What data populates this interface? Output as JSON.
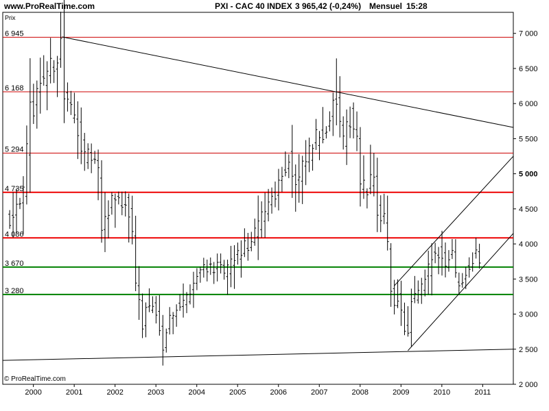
{
  "header": {
    "site": "www.ProRealTime.com",
    "instrument": "PXI - CAC 40 INDEX",
    "quote": "3 965,42 (-0,24%)",
    "period": "Mensuel",
    "time": "15:28"
  },
  "footer": {
    "copyright": "© ProRealTime.com"
  },
  "chart_data": {
    "type": "ohlc",
    "ylabel": "Prix",
    "ylim": [
      2000,
      7300
    ],
    "xlim": [
      1999.25,
      2011.75
    ],
    "x_ticks": [
      2000,
      2001,
      2002,
      2003,
      2004,
      2005,
      2006,
      2007,
      2008,
      2009,
      2010,
      2011
    ],
    "x_tick_labels": [
      "2000",
      "2001",
      "2002",
      "2003",
      "2004",
      "2005",
      "2006",
      "2007",
      "2008",
      "2009",
      "2010",
      "2011"
    ],
    "y_ticks": [
      2000,
      2500,
      3000,
      3500,
      4000,
      4500,
      5000,
      5500,
      6000,
      6500,
      7000
    ],
    "y_tick_labels": [
      "2 000",
      "2 500",
      "3 000",
      "3 500",
      "4 000",
      "4 500",
      "5 000",
      "5 500",
      "6 000",
      "6 500",
      "7 000"
    ],
    "y_tick_bold": "5 000",
    "grid": false,
    "horizontal_levels": [
      {
        "value": 6945,
        "label": "6 945",
        "color": "#cc0000",
        "weight": "thin"
      },
      {
        "value": 6168,
        "label": "6 168",
        "color": "#cc0000",
        "weight": "thin"
      },
      {
        "value": 5294,
        "label": "5 294",
        "color": "#cc0000",
        "weight": "thin"
      },
      {
        "value": 4735,
        "label": "4 735",
        "color": "#ee0000",
        "weight": "thick"
      },
      {
        "value": 4086,
        "label": "4 086",
        "color": "#ee0000",
        "weight": "thick"
      },
      {
        "value": 3670,
        "label": "3 670",
        "color": "#008000",
        "weight": "thick"
      },
      {
        "value": 3280,
        "label": "3 280",
        "color": "#008000",
        "weight": "thick"
      }
    ],
    "trendlines": [
      {
        "from": [
          2000.7,
          6950
        ],
        "to": [
          2011.75,
          5660
        ]
      },
      {
        "from": [
          1999.25,
          2340
        ],
        "to": [
          2011.75,
          2500
        ]
      },
      {
        "from": [
          2009.17,
          2480
        ],
        "to": [
          2011.75,
          4150
        ]
      },
      {
        "from": [
          2008.83,
          3400
        ],
        "to": [
          2011.75,
          5250
        ]
      }
    ],
    "colors": {
      "bars": "#000000",
      "axis": "#000000"
    },
    "anchors": [
      [
        1999.42,
        4350
      ],
      [
        1999.58,
        4600
      ],
      [
        1999.75,
        4700
      ],
      [
        1999.92,
        5900
      ],
      [
        2000.0,
        5950
      ],
      [
        2000.17,
        6350
      ],
      [
        2000.42,
        6500
      ],
      [
        2000.58,
        6650
      ],
      [
        2000.67,
        6900
      ],
      [
        2000.75,
        6100
      ],
      [
        2000.92,
        5900
      ],
      [
        2001.08,
        5700
      ],
      [
        2001.25,
        5200
      ],
      [
        2001.42,
        5250
      ],
      [
        2001.58,
        5050
      ],
      [
        2001.67,
        4200
      ],
      [
        2001.75,
        4300
      ],
      [
        2001.83,
        4450
      ],
      [
        2001.92,
        4700
      ],
      [
        2002.17,
        4600
      ],
      [
        2002.33,
        4500
      ],
      [
        2002.42,
        4100
      ],
      [
        2002.5,
        3500
      ],
      [
        2002.58,
        3200
      ],
      [
        2002.67,
        2800
      ],
      [
        2002.75,
        3100
      ],
      [
        2002.92,
        3100
      ],
      [
        2003.08,
        2850
      ],
      [
        2003.17,
        2550
      ],
      [
        2003.33,
        2950
      ],
      [
        2003.5,
        3100
      ],
      [
        2003.67,
        3150
      ],
      [
        2003.83,
        3350
      ],
      [
        2004.0,
        3550
      ],
      [
        2004.17,
        3700
      ],
      [
        2004.5,
        3650
      ],
      [
        2004.67,
        3600
      ],
      [
        2004.83,
        3700
      ],
      [
        2005.0,
        3850
      ],
      [
        2005.17,
        3950
      ],
      [
        2005.33,
        4000
      ],
      [
        2005.5,
        4250
      ],
      [
        2005.58,
        4400
      ],
      [
        2005.75,
        4600
      ],
      [
        2005.92,
        4750
      ],
      [
        2006.08,
        5000
      ],
      [
        2006.25,
        5200
      ],
      [
        2006.33,
        5000
      ],
      [
        2006.42,
        4800
      ],
      [
        2006.58,
        5050
      ],
      [
        2006.75,
        5300
      ],
      [
        2006.92,
        5500
      ],
      [
        2007.08,
        5600
      ],
      [
        2007.25,
        5800
      ],
      [
        2007.42,
        6050
      ],
      [
        2007.5,
        5700
      ],
      [
        2007.58,
        5400
      ],
      [
        2007.75,
        5800
      ],
      [
        2007.92,
        5550
      ],
      [
        2008.0,
        4850
      ],
      [
        2008.17,
        4750
      ],
      [
        2008.33,
        5000
      ],
      [
        2008.42,
        4500
      ],
      [
        2008.5,
        4300
      ],
      [
        2008.58,
        4400
      ],
      [
        2008.67,
        3950
      ],
      [
        2008.75,
        3300
      ],
      [
        2008.83,
        3150
      ],
      [
        2008.92,
        3250
      ],
      [
        2009.08,
        2800
      ],
      [
        2009.17,
        2700
      ],
      [
        2009.25,
        3150
      ],
      [
        2009.42,
        3300
      ],
      [
        2009.58,
        3450
      ],
      [
        2009.75,
        3800
      ],
      [
        2009.92,
        3900
      ],
      [
        2010.08,
        3700
      ],
      [
        2010.25,
        3950
      ],
      [
        2010.33,
        3550
      ],
      [
        2010.42,
        3450
      ],
      [
        2010.58,
        3600
      ],
      [
        2010.67,
        3700
      ],
      [
        2010.83,
        3850
      ],
      [
        2011.0,
        3750
      ]
    ]
  }
}
